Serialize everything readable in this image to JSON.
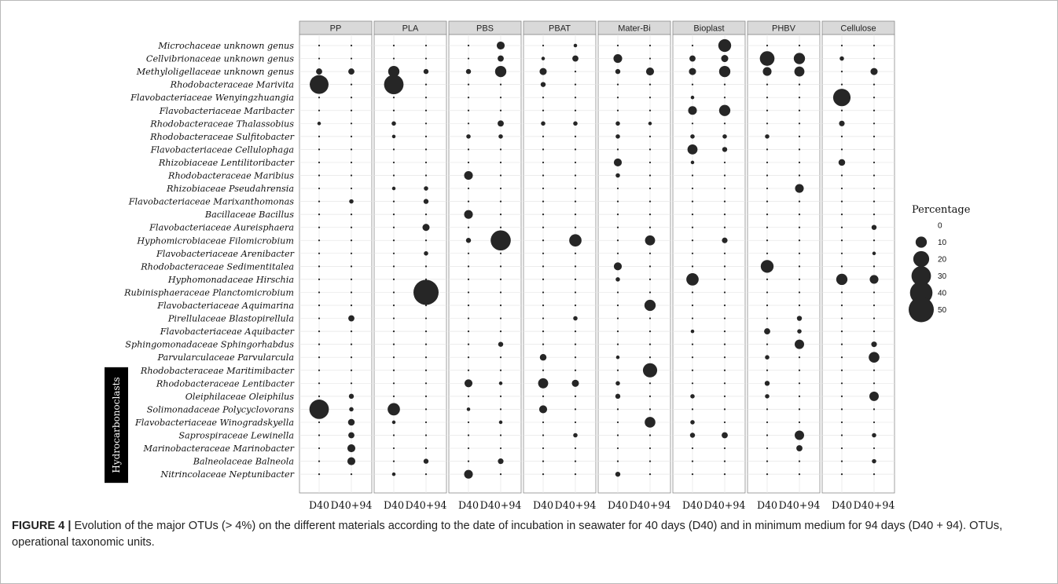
{
  "chart_data": {
    "type": "scatter",
    "subtype": "bubble",
    "panels": [
      "PP",
      "PLA",
      "PBS",
      "PBAT",
      "Mater-Bi",
      "Bioplast",
      "PHBV",
      "Cellulose"
    ],
    "x_categories": [
      "D40",
      "D40+94"
    ],
    "taxa": [
      "Microchaceae unknown genus",
      "Cellvibrionaceae unknown genus",
      "Methyloligellaceae unknown genus",
      "Rhodobacteraceae Marivita",
      "Flavobacteriaceae Wenyingzhuangia",
      "Flavobacteriaceae Maribacter",
      "Rhodobacteraceae Thalassobius",
      "Rhodobacteraceae Sulfitobacter",
      "Flavobacteriaceae Cellulophaga",
      "Rhizobiaceae Lentilitoribacter",
      "Rhodobacteraceae Maribius",
      "Rhizobiaceae Pseudahrensia",
      "Flavobacteriaceae Marixanthomonas",
      "Bacillaceae Bacillus",
      "Flavobacteriaceae Aureisphaera",
      "Hyphomicrobiaceae Filomicrobium",
      "Flavobacteriaceae Arenibacter",
      "Rhodobacteraceae Sedimentitalea",
      "Hyphomonadaceae Hirschia",
      "Rubinisphaeraceae Planctomicrobium",
      "Flavobacteriaceae Aquimarina",
      "Pirellulaceae Blastopirellula",
      "Flavobacteriaceae Aquibacter",
      "Sphingomonadaceae Sphingorhabdus",
      "Parvularculaceae Parvularcula",
      "Rhodobacteraceae Maritimibacter",
      "Rhodobacteraceae Lentibacter",
      "Oleiphilaceae Oleiphilus",
      "Solimonadaceae Polycyclovorans",
      "Flavobacteriaceae Winogradskyella",
      "Saprospiraceae Lewinella",
      "Marinobacteraceae Marinobacter",
      "Balneolaceae Balneola",
      "Nitrincolaceae Neptunibacter"
    ],
    "annotation": {
      "label": "Hydrocarbonoclasts",
      "from_taxon": 27,
      "to_taxon": 33
    },
    "legend": {
      "title": "Percentage",
      "values": [
        0,
        10,
        20,
        30,
        40,
        50
      ],
      "position": "right"
    },
    "grid": true,
    "max_percentage": 50,
    "background_point_value": 0.3,
    "values": [
      {
        "panel": 0,
        "x": 0,
        "taxon": 2,
        "value": 3
      },
      {
        "panel": 0,
        "x": 1,
        "taxon": 2,
        "value": 3
      },
      {
        "panel": 0,
        "x": 0,
        "taxon": 3,
        "value": 28
      },
      {
        "panel": 0,
        "x": 0,
        "taxon": 6,
        "value": 1
      },
      {
        "panel": 0,
        "x": 1,
        "taxon": 12,
        "value": 1.5
      },
      {
        "panel": 0,
        "x": 1,
        "taxon": 21,
        "value": 3
      },
      {
        "panel": 0,
        "x": 1,
        "taxon": 27,
        "value": 2
      },
      {
        "panel": 0,
        "x": 0,
        "taxon": 28,
        "value": 30
      },
      {
        "panel": 0,
        "x": 1,
        "taxon": 28,
        "value": 1.5
      },
      {
        "panel": 0,
        "x": 1,
        "taxon": 29,
        "value": 3.5
      },
      {
        "panel": 0,
        "x": 1,
        "taxon": 30,
        "value": 3
      },
      {
        "panel": 0,
        "x": 1,
        "taxon": 31,
        "value": 5
      },
      {
        "panel": 0,
        "x": 1,
        "taxon": 32,
        "value": 5
      },
      {
        "panel": 1,
        "x": 0,
        "taxon": 2,
        "value": 10
      },
      {
        "panel": 1,
        "x": 1,
        "taxon": 2,
        "value": 2
      },
      {
        "panel": 1,
        "x": 0,
        "taxon": 3,
        "value": 30
      },
      {
        "panel": 1,
        "x": 0,
        "taxon": 6,
        "value": 1.5
      },
      {
        "panel": 1,
        "x": 0,
        "taxon": 7,
        "value": 1
      },
      {
        "panel": 1,
        "x": 0,
        "taxon": 11,
        "value": 1
      },
      {
        "panel": 1,
        "x": 1,
        "taxon": 11,
        "value": 1.5
      },
      {
        "panel": 1,
        "x": 1,
        "taxon": 12,
        "value": 2
      },
      {
        "panel": 1,
        "x": 1,
        "taxon": 14,
        "value": 4
      },
      {
        "panel": 1,
        "x": 1,
        "taxon": 16,
        "value": 1.5
      },
      {
        "panel": 1,
        "x": 1,
        "taxon": 19,
        "value": 50
      },
      {
        "panel": 1,
        "x": 0,
        "taxon": 28,
        "value": 12
      },
      {
        "panel": 1,
        "x": 0,
        "taxon": 29,
        "value": 1
      },
      {
        "panel": 1,
        "x": 1,
        "taxon": 32,
        "value": 2
      },
      {
        "panel": 1,
        "x": 0,
        "taxon": 33,
        "value": 1
      },
      {
        "panel": 2,
        "x": 1,
        "taxon": 0,
        "value": 5
      },
      {
        "panel": 2,
        "x": 1,
        "taxon": 1,
        "value": 3
      },
      {
        "panel": 2,
        "x": 0,
        "taxon": 2,
        "value": 2
      },
      {
        "panel": 2,
        "x": 1,
        "taxon": 2,
        "value": 10
      },
      {
        "panel": 2,
        "x": 1,
        "taxon": 6,
        "value": 3
      },
      {
        "panel": 2,
        "x": 0,
        "taxon": 7,
        "value": 1.5
      },
      {
        "panel": 2,
        "x": 1,
        "taxon": 7,
        "value": 1.5
      },
      {
        "panel": 2,
        "x": 0,
        "taxon": 10,
        "value": 6
      },
      {
        "panel": 2,
        "x": 0,
        "taxon": 13,
        "value": 6
      },
      {
        "panel": 2,
        "x": 0,
        "taxon": 15,
        "value": 2
      },
      {
        "panel": 2,
        "x": 1,
        "taxon": 15,
        "value": 32
      },
      {
        "panel": 2,
        "x": 1,
        "taxon": 23,
        "value": 2
      },
      {
        "panel": 2,
        "x": 0,
        "taxon": 26,
        "value": 5
      },
      {
        "panel": 2,
        "x": 1,
        "taxon": 26,
        "value": 1
      },
      {
        "panel": 2,
        "x": 0,
        "taxon": 28,
        "value": 1
      },
      {
        "panel": 2,
        "x": 1,
        "taxon": 29,
        "value": 1
      },
      {
        "panel": 2,
        "x": 1,
        "taxon": 32,
        "value": 2.5
      },
      {
        "panel": 2,
        "x": 0,
        "taxon": 33,
        "value": 6
      },
      {
        "panel": 3,
        "x": 1,
        "taxon": 0,
        "value": 1
      },
      {
        "panel": 3,
        "x": 0,
        "taxon": 1,
        "value": 1
      },
      {
        "panel": 3,
        "x": 1,
        "taxon": 1,
        "value": 3
      },
      {
        "panel": 3,
        "x": 0,
        "taxon": 2,
        "value": 4
      },
      {
        "panel": 3,
        "x": 0,
        "taxon": 3,
        "value": 2
      },
      {
        "panel": 3,
        "x": 0,
        "taxon": 6,
        "value": 1.5
      },
      {
        "panel": 3,
        "x": 1,
        "taxon": 6,
        "value": 1.5
      },
      {
        "panel": 3,
        "x": 1,
        "taxon": 15,
        "value": 12
      },
      {
        "panel": 3,
        "x": 1,
        "taxon": 21,
        "value": 1.5
      },
      {
        "panel": 3,
        "x": 0,
        "taxon": 24,
        "value": 3.5
      },
      {
        "panel": 3,
        "x": 0,
        "taxon": 26,
        "value": 8
      },
      {
        "panel": 3,
        "x": 1,
        "taxon": 26,
        "value": 4
      },
      {
        "panel": 3,
        "x": 0,
        "taxon": 28,
        "value": 5
      },
      {
        "panel": 3,
        "x": 1,
        "taxon": 30,
        "value": 1.5
      },
      {
        "panel": 4,
        "x": 0,
        "taxon": 1,
        "value": 6
      },
      {
        "panel": 4,
        "x": 0,
        "taxon": 2,
        "value": 2
      },
      {
        "panel": 4,
        "x": 1,
        "taxon": 2,
        "value": 5
      },
      {
        "panel": 4,
        "x": 0,
        "taxon": 6,
        "value": 1.5
      },
      {
        "panel": 4,
        "x": 1,
        "taxon": 6,
        "value": 1
      },
      {
        "panel": 4,
        "x": 0,
        "taxon": 7,
        "value": 1.5
      },
      {
        "panel": 4,
        "x": 0,
        "taxon": 9,
        "value": 5
      },
      {
        "panel": 4,
        "x": 0,
        "taxon": 10,
        "value": 1.5
      },
      {
        "panel": 4,
        "x": 1,
        "taxon": 15,
        "value": 8
      },
      {
        "panel": 4,
        "x": 0,
        "taxon": 17,
        "value": 5
      },
      {
        "panel": 4,
        "x": 0,
        "taxon": 18,
        "value": 1.5
      },
      {
        "panel": 4,
        "x": 1,
        "taxon": 20,
        "value": 10
      },
      {
        "panel": 4,
        "x": 0,
        "taxon": 24,
        "value": 1
      },
      {
        "panel": 4,
        "x": 1,
        "taxon": 25,
        "value": 16
      },
      {
        "panel": 4,
        "x": 0,
        "taxon": 26,
        "value": 1.5
      },
      {
        "panel": 4,
        "x": 0,
        "taxon": 27,
        "value": 2
      },
      {
        "panel": 4,
        "x": 1,
        "taxon": 29,
        "value": 9
      },
      {
        "panel": 4,
        "x": 0,
        "taxon": 33,
        "value": 2
      },
      {
        "panel": 5,
        "x": 1,
        "taxon": 0,
        "value": 13
      },
      {
        "panel": 5,
        "x": 0,
        "taxon": 1,
        "value": 3
      },
      {
        "panel": 5,
        "x": 1,
        "taxon": 1,
        "value": 4
      },
      {
        "panel": 5,
        "x": 0,
        "taxon": 2,
        "value": 4
      },
      {
        "panel": 5,
        "x": 1,
        "taxon": 2,
        "value": 10
      },
      {
        "panel": 5,
        "x": 0,
        "taxon": 4,
        "value": 1
      },
      {
        "panel": 5,
        "x": 0,
        "taxon": 5,
        "value": 6
      },
      {
        "panel": 5,
        "x": 1,
        "taxon": 5,
        "value": 10
      },
      {
        "panel": 5,
        "x": 0,
        "taxon": 7,
        "value": 1.5
      },
      {
        "panel": 5,
        "x": 1,
        "taxon": 7,
        "value": 1.5
      },
      {
        "panel": 5,
        "x": 0,
        "taxon": 8,
        "value": 8
      },
      {
        "panel": 5,
        "x": 1,
        "taxon": 8,
        "value": 2
      },
      {
        "panel": 5,
        "x": 0,
        "taxon": 9,
        "value": 1
      },
      {
        "panel": 5,
        "x": 1,
        "taxon": 15,
        "value": 2.5
      },
      {
        "panel": 5,
        "x": 0,
        "taxon": 18,
        "value": 12
      },
      {
        "panel": 5,
        "x": 0,
        "taxon": 22,
        "value": 1
      },
      {
        "panel": 5,
        "x": 0,
        "taxon": 27,
        "value": 1.5
      },
      {
        "panel": 5,
        "x": 0,
        "taxon": 29,
        "value": 1.5
      },
      {
        "panel": 5,
        "x": 0,
        "taxon": 30,
        "value": 2
      },
      {
        "panel": 5,
        "x": 1,
        "taxon": 30,
        "value": 3
      },
      {
        "panel": 6,
        "x": 0,
        "taxon": 1,
        "value": 17
      },
      {
        "panel": 6,
        "x": 1,
        "taxon": 1,
        "value": 10
      },
      {
        "panel": 6,
        "x": 0,
        "taxon": 2,
        "value": 6
      },
      {
        "panel": 6,
        "x": 1,
        "taxon": 2,
        "value": 8
      },
      {
        "panel": 6,
        "x": 0,
        "taxon": 7,
        "value": 1.5
      },
      {
        "panel": 6,
        "x": 1,
        "taxon": 11,
        "value": 6
      },
      {
        "panel": 6,
        "x": 0,
        "taxon": 17,
        "value": 13
      },
      {
        "panel": 6,
        "x": 0,
        "taxon": 22,
        "value": 3
      },
      {
        "panel": 6,
        "x": 1,
        "taxon": 22,
        "value": 1.5
      },
      {
        "panel": 6,
        "x": 1,
        "taxon": 23,
        "value": 7
      },
      {
        "panel": 6,
        "x": 0,
        "taxon": 24,
        "value": 1.5
      },
      {
        "panel": 6,
        "x": 0,
        "taxon": 26,
        "value": 2
      },
      {
        "panel": 6,
        "x": 0,
        "taxon": 27,
        "value": 1.5
      },
      {
        "panel": 6,
        "x": 1,
        "taxon": 30,
        "value": 7
      },
      {
        "panel": 6,
        "x": 1,
        "taxon": 31,
        "value": 3
      },
      {
        "panel": 6,
        "x": 1,
        "taxon": 21,
        "value": 2
      },
      {
        "panel": 7,
        "x": 0,
        "taxon": 1,
        "value": 1.5
      },
      {
        "panel": 7,
        "x": 1,
        "taxon": 2,
        "value": 4
      },
      {
        "panel": 7,
        "x": 0,
        "taxon": 4,
        "value": 24
      },
      {
        "panel": 7,
        "x": 0,
        "taxon": 6,
        "value": 2.5
      },
      {
        "panel": 7,
        "x": 0,
        "taxon": 9,
        "value": 3.5
      },
      {
        "panel": 7,
        "x": 1,
        "taxon": 14,
        "value": 2
      },
      {
        "panel": 7,
        "x": 1,
        "taxon": 16,
        "value": 1
      },
      {
        "panel": 7,
        "x": 0,
        "taxon": 18,
        "value": 10
      },
      {
        "panel": 7,
        "x": 1,
        "taxon": 18,
        "value": 6
      },
      {
        "panel": 7,
        "x": 1,
        "taxon": 23,
        "value": 2.5
      },
      {
        "panel": 7,
        "x": 1,
        "taxon": 24,
        "value": 9
      },
      {
        "panel": 7,
        "x": 1,
        "taxon": 27,
        "value": 7
      },
      {
        "panel": 7,
        "x": 1,
        "taxon": 30,
        "value": 1.5
      },
      {
        "panel": 7,
        "x": 1,
        "taxon": 32,
        "value": 1.5
      }
    ]
  },
  "caption": {
    "label": "FIGURE 4 |",
    "text": " Evolution of the major OTUs (> 4%) on the different materials according to the date of incubation in seawater for 40 days (D40) and in minimum medium for 94 days (D40 + 94). OTUs, operational taxonomic units."
  }
}
